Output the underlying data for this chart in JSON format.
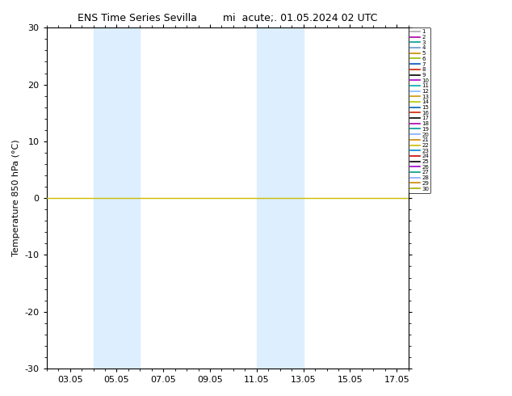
{
  "title": "ENS Time Series Sevilla",
  "subtitle": "mi  acute;. 01.05.2024 02 UTC",
  "ylabel": "Temperature 850 hPa (°C)",
  "ylim": [
    -30,
    30
  ],
  "yticks": [
    -30,
    -20,
    -10,
    0,
    10,
    20,
    30
  ],
  "xstart": 2.05,
  "xend": 17.55,
  "xticks": [
    3.05,
    5.05,
    7.05,
    9.05,
    11.05,
    13.05,
    15.05,
    17.05
  ],
  "xlabels": [
    "03.05",
    "05.05",
    "07.05",
    "09.05",
    "11.05",
    "13.05",
    "15.05",
    "17.05"
  ],
  "shaded_regions": [
    [
      4.05,
      5.05
    ],
    [
      5.05,
      6.05
    ],
    [
      11.05,
      12.05
    ],
    [
      12.05,
      13.05
    ]
  ],
  "shaded_color": "#ddeeff",
  "line_y": 0.0,
  "line_color": "#ccbb00",
  "member_colors": [
    "#aaaaaa",
    "#aa00aa",
    "#009999",
    "#6699cc",
    "#cc8800",
    "#99bb00",
    "#0055bb",
    "#cc2200",
    "#000000",
    "#aa00cc",
    "#00aaaa",
    "#88bbff",
    "#cc9900",
    "#aacc00",
    "#0066bb",
    "#cc2200",
    "#000000",
    "#aa00aa",
    "#009999",
    "#88aaff",
    "#cc8800",
    "#ccbb00",
    "#0088cc",
    "#cc0000",
    "#000000",
    "#9900cc",
    "#009988",
    "#88aaff",
    "#cc8800",
    "#aaaa00"
  ],
  "n_members": 30,
  "bg_color": "#ffffff",
  "legend_fontsize": 5.0,
  "axis_fontsize": 8,
  "title_fontsize": 9
}
